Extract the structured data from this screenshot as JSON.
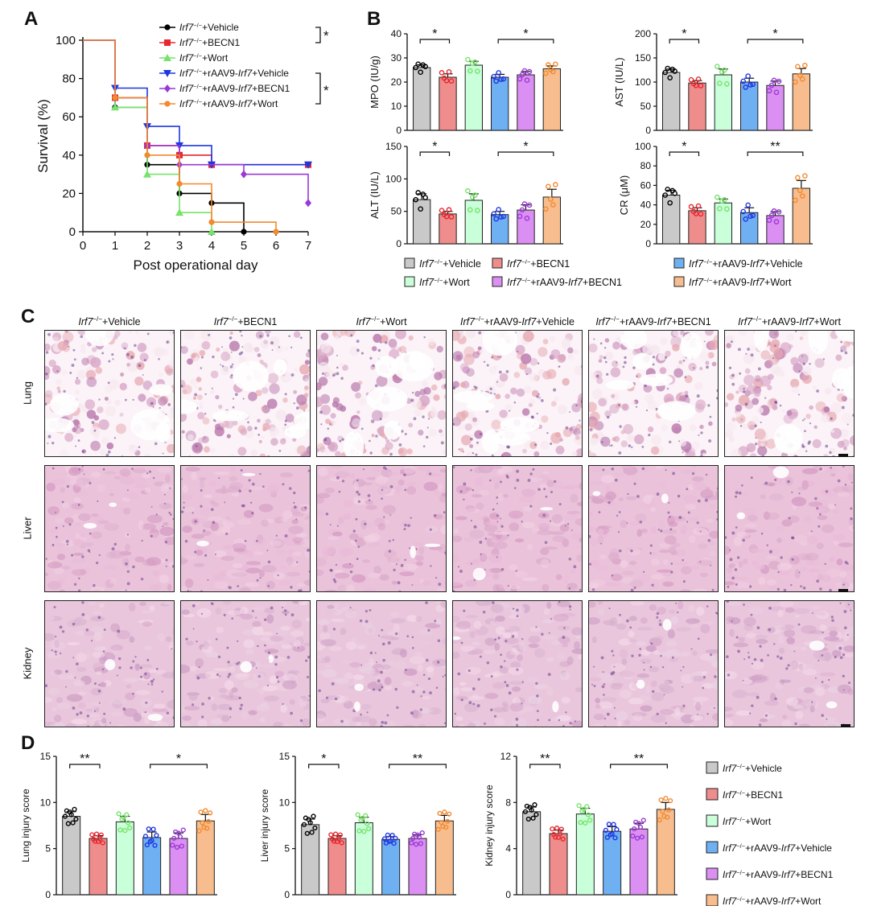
{
  "panels": {
    "a": "A",
    "b": "B",
    "c": "C",
    "d": "D"
  },
  "colors": {
    "vehicle": "#c9c9c9",
    "becn1": "#ef8c8c",
    "wort": "#c9ffd9",
    "raav_vehicle": "#6fb0f3",
    "raav_becn1": "#dc8ff2",
    "raav_wort": "#f7bd8e",
    "vehicle_line": "#000000",
    "becn1_line": "#e8282e",
    "wort_line": "#76e36a",
    "raav_vehicle_line": "#1f36e0",
    "raav_becn1_line": "#9a39d6",
    "raav_wort_line": "#f28a2e"
  },
  "groups": [
    {
      "base": "Irf7",
      "sup": "−/−",
      "rest": "+Vehicle",
      "rest_italic": "",
      "rest_tail": ""
    },
    {
      "base": "Irf7",
      "sup": "−/−",
      "rest": "+BECN1",
      "rest_italic": "",
      "rest_tail": ""
    },
    {
      "base": "Irf7",
      "sup": "−/−",
      "rest": "+Wort",
      "rest_italic": "",
      "rest_tail": ""
    },
    {
      "base": "Irf7",
      "sup": "−/−",
      "rest": "+rAAV9-",
      "rest_italic": "Irf7",
      "rest_tail": "+Vehicle"
    },
    {
      "base": "Irf7",
      "sup": "−/−",
      "rest": "+rAAV9-",
      "rest_italic": "Irf7",
      "rest_tail": "+BECN1"
    },
    {
      "base": "Irf7",
      "sup": "−/−",
      "rest": "+rAAV9-",
      "rest_italic": "Irf7",
      "rest_tail": "+Wort"
    }
  ],
  "survival_sig": [
    "*",
    "*"
  ],
  "histology": {
    "row_labels": [
      "Lung",
      "Liver",
      "Kidney"
    ]
  },
  "chart_data": [
    {
      "id": "A",
      "type": "line",
      "step": true,
      "xlabel": "Post operational day",
      "ylabel": "Survival (%)",
      "xlim": [
        0,
        7
      ],
      "ylim": [
        0,
        100
      ],
      "xticks": [
        0,
        1,
        2,
        3,
        4,
        5,
        6,
        7
      ],
      "yticks": [
        0,
        20,
        40,
        60,
        80,
        100
      ],
      "series": [
        {
          "name": "Irf7−/−+Vehicle",
          "marker": "circle",
          "x": [
            0,
            1,
            2,
            3,
            4,
            5
          ],
          "y": [
            100,
            65,
            35,
            20,
            15,
            0
          ]
        },
        {
          "name": "Irf7−/−+BECN1",
          "marker": "square",
          "x": [
            0,
            1,
            2,
            3,
            4,
            7
          ],
          "y": [
            100,
            70,
            45,
            40,
            35,
            35
          ]
        },
        {
          "name": "Irf7−/−+Wort",
          "marker": "triangle-up",
          "x": [
            0,
            1,
            2,
            3,
            4
          ],
          "y": [
            100,
            65,
            30,
            10,
            0
          ]
        },
        {
          "name": "Irf7−/−+rAAV9-Irf7+Vehicle",
          "marker": "triangle-down",
          "x": [
            0,
            1,
            2,
            3,
            4,
            7
          ],
          "y": [
            100,
            75,
            55,
            45,
            35,
            35
          ]
        },
        {
          "name": "Irf7−/−+rAAV9-Irf7+BECN1",
          "marker": "diamond",
          "x": [
            0,
            1,
            2,
            3,
            5,
            7
          ],
          "y": [
            100,
            70,
            45,
            35,
            30,
            15
          ]
        },
        {
          "name": "Irf7−/−+rAAV9-Irf7+Wort",
          "marker": "circle",
          "x": [
            0,
            1,
            2,
            3,
            4,
            6
          ],
          "y": [
            100,
            70,
            40,
            25,
            5,
            0
          ]
        }
      ]
    },
    {
      "id": "MPO",
      "type": "bar",
      "ylabel": "MPO (IU/g)",
      "ylim": [
        0,
        40
      ],
      "yticks": [
        0,
        10,
        20,
        30,
        40
      ],
      "values": [
        26,
        22,
        27,
        22,
        23,
        25.5
      ],
      "errors": [
        1.2,
        1.4,
        1.6,
        1.2,
        1.4,
        1.2
      ],
      "sig": [
        {
          "from": 0,
          "to": 1,
          "label": "*"
        },
        {
          "from": 3,
          "to": 5,
          "label": "*"
        }
      ]
    },
    {
      "id": "AST",
      "type": "bar",
      "ylabel": "AST (IU/L)",
      "ylim": [
        0,
        200
      ],
      "yticks": [
        0,
        50,
        100,
        150,
        200
      ],
      "values": [
        120,
        98,
        115,
        100,
        93,
        117
      ],
      "errors": [
        7,
        5,
        12,
        8,
        9,
        11
      ],
      "sig": [
        {
          "from": 0,
          "to": 1,
          "label": "*"
        },
        {
          "from": 3,
          "to": 5,
          "label": "*"
        }
      ]
    },
    {
      "id": "ALT",
      "type": "bar",
      "ylabel": "ALT (IU/L)",
      "ylim": [
        0,
        150
      ],
      "yticks": [
        0,
        50,
        100,
        150
      ],
      "values": [
        68,
        46,
        67,
        45,
        52,
        72
      ],
      "errors": [
        9,
        4,
        10,
        5,
        8,
        12
      ],
      "sig": [
        {
          "from": 0,
          "to": 1,
          "label": "*"
        },
        {
          "from": 3,
          "to": 5,
          "label": "*"
        }
      ]
    },
    {
      "id": "CR",
      "type": "bar",
      "ylabel": "CR (μM)",
      "ylim": [
        0,
        100
      ],
      "yticks": [
        0,
        20,
        40,
        60,
        80,
        100
      ],
      "values": [
        50,
        34,
        42,
        32,
        29,
        57
      ],
      "errors": [
        5,
        3,
        4,
        5,
        4,
        8
      ],
      "sig": [
        {
          "from": 0,
          "to": 1,
          "label": "*"
        },
        {
          "from": 3,
          "to": 5,
          "label": "**"
        }
      ]
    },
    {
      "id": "Lung",
      "type": "bar",
      "ylabel": "Lung injury score",
      "ylim": [
        0,
        15
      ],
      "yticks": [
        0,
        5,
        10,
        15
      ],
      "values": [
        8.5,
        6.1,
        7.9,
        6.2,
        6.1,
        8.0
      ],
      "errors": [
        0.5,
        0.3,
        0.6,
        0.6,
        0.6,
        0.7
      ],
      "sig": [
        {
          "from": 0,
          "to": 1,
          "label": "**"
        },
        {
          "from": 3,
          "to": 5,
          "label": "*"
        }
      ]
    },
    {
      "id": "Liver",
      "type": "bar",
      "ylabel": "Liver injury score",
      "ylim": [
        0,
        15
      ],
      "yticks": [
        0,
        5,
        10,
        15
      ],
      "values": [
        7.6,
        6.1,
        7.8,
        6.0,
        6.1,
        8.0
      ],
      "errors": [
        0.6,
        0.3,
        0.6,
        0.3,
        0.4,
        0.6
      ],
      "sig": [
        {
          "from": 0,
          "to": 1,
          "label": "*"
        },
        {
          "from": 3,
          "to": 5,
          "label": "**"
        }
      ]
    },
    {
      "id": "Kidney",
      "type": "bar",
      "ylabel": "Kidney injury score",
      "ylim": [
        0,
        12
      ],
      "yticks": [
        0,
        4,
        8,
        12
      ],
      "values": [
        7.2,
        5.3,
        7.0,
        5.5,
        5.7,
        7.4
      ],
      "errors": [
        0.4,
        0.3,
        0.5,
        0.4,
        0.5,
        0.6
      ],
      "sig": [
        {
          "from": 0,
          "to": 1,
          "label": "**"
        },
        {
          "from": 3,
          "to": 5,
          "label": "**"
        }
      ]
    }
  ]
}
